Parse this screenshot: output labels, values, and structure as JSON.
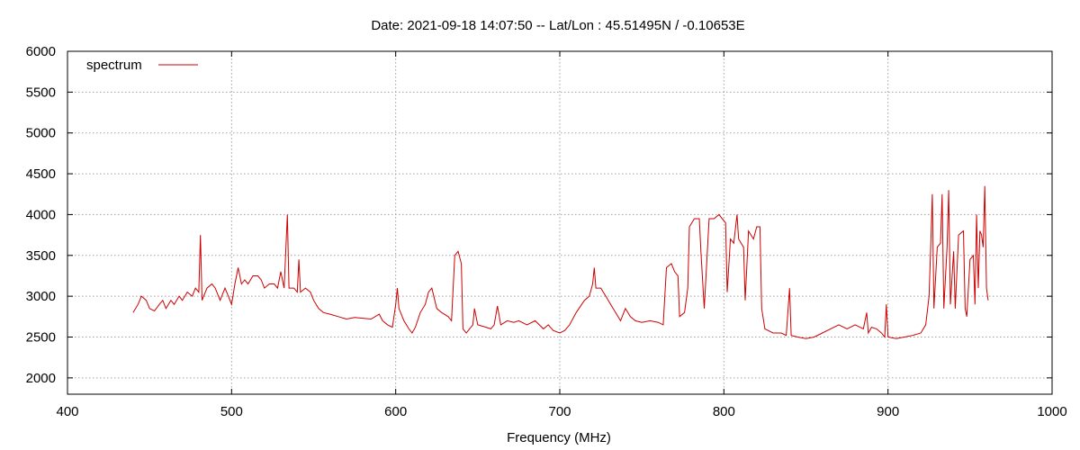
{
  "chart_data": {
    "type": "line",
    "title": "Date: 2021-09-18 14:07:50  --  Lat/Lon : 45.51495N / -0.10653E",
    "xlabel": "Frequency (MHz)",
    "ylabel": "",
    "xlim": [
      400,
      1000
    ],
    "ylim": [
      1800,
      6000
    ],
    "xticks": [
      "400",
      "500",
      "600",
      "700",
      "800",
      "900",
      "1000"
    ],
    "yticks": [
      "2000",
      "2500",
      "3000",
      "3500",
      "4000",
      "4500",
      "5000",
      "5500",
      "6000"
    ],
    "grid": true,
    "legend_position": "top-left",
    "series": [
      {
        "name": "spectrum",
        "color": "#cc0000",
        "points": [
          [
            440,
            2800
          ],
          [
            443,
            2900
          ],
          [
            445,
            3000
          ],
          [
            448,
            2950
          ],
          [
            450,
            2850
          ],
          [
            453,
            2820
          ],
          [
            456,
            2900
          ],
          [
            458,
            2950
          ],
          [
            460,
            2850
          ],
          [
            463,
            2950
          ],
          [
            465,
            2900
          ],
          [
            468,
            3000
          ],
          [
            470,
            2950
          ],
          [
            473,
            3050
          ],
          [
            476,
            3000
          ],
          [
            478,
            3100
          ],
          [
            480,
            3050
          ],
          [
            481,
            3750
          ],
          [
            482,
            2950
          ],
          [
            485,
            3100
          ],
          [
            488,
            3150
          ],
          [
            490,
            3100
          ],
          [
            493,
            2950
          ],
          [
            496,
            3100
          ],
          [
            498,
            3000
          ],
          [
            500,
            2900
          ],
          [
            502,
            3150
          ],
          [
            504,
            3350
          ],
          [
            506,
            3150
          ],
          [
            508,
            3200
          ],
          [
            510,
            3150
          ],
          [
            513,
            3250
          ],
          [
            516,
            3250
          ],
          [
            518,
            3200
          ],
          [
            520,
            3100
          ],
          [
            523,
            3150
          ],
          [
            526,
            3150
          ],
          [
            528,
            3100
          ],
          [
            530,
            3300
          ],
          [
            532,
            3100
          ],
          [
            534,
            4000
          ],
          [
            535,
            3100
          ],
          [
            538,
            3100
          ],
          [
            540,
            3050
          ],
          [
            541,
            3450
          ],
          [
            542,
            3050
          ],
          [
            545,
            3100
          ],
          [
            548,
            3050
          ],
          [
            550,
            2950
          ],
          [
            553,
            2850
          ],
          [
            556,
            2800
          ],
          [
            560,
            2780
          ],
          [
            565,
            2750
          ],
          [
            570,
            2720
          ],
          [
            575,
            2740
          ],
          [
            580,
            2730
          ],
          [
            585,
            2720
          ],
          [
            590,
            2780
          ],
          [
            592,
            2700
          ],
          [
            595,
            2650
          ],
          [
            598,
            2620
          ],
          [
            600,
            2900
          ],
          [
            601,
            3100
          ],
          [
            602,
            2850
          ],
          [
            605,
            2700
          ],
          [
            608,
            2600
          ],
          [
            610,
            2550
          ],
          [
            612,
            2620
          ],
          [
            615,
            2800
          ],
          [
            618,
            2900
          ],
          [
            620,
            3050
          ],
          [
            622,
            3100
          ],
          [
            625,
            2850
          ],
          [
            628,
            2800
          ],
          [
            632,
            2750
          ],
          [
            634,
            2700
          ],
          [
            636,
            3500
          ],
          [
            638,
            3550
          ],
          [
            640,
            3400
          ],
          [
            641,
            2600
          ],
          [
            643,
            2550
          ],
          [
            645,
            2600
          ],
          [
            647,
            2650
          ],
          [
            648,
            2850
          ],
          [
            650,
            2650
          ],
          [
            655,
            2620
          ],
          [
            658,
            2600
          ],
          [
            660,
            2650
          ],
          [
            662,
            2880
          ],
          [
            664,
            2650
          ],
          [
            668,
            2700
          ],
          [
            672,
            2680
          ],
          [
            675,
            2700
          ],
          [
            680,
            2650
          ],
          [
            685,
            2700
          ],
          [
            690,
            2600
          ],
          [
            693,
            2650
          ],
          [
            696,
            2580
          ],
          [
            700,
            2550
          ],
          [
            703,
            2580
          ],
          [
            706,
            2650
          ],
          [
            710,
            2800
          ],
          [
            715,
            2950
          ],
          [
            718,
            3000
          ],
          [
            720,
            3150
          ],
          [
            721,
            3350
          ],
          [
            722,
            3100
          ],
          [
            725,
            3100
          ],
          [
            728,
            3000
          ],
          [
            731,
            2900
          ],
          [
            734,
            2800
          ],
          [
            737,
            2700
          ],
          [
            740,
            2850
          ],
          [
            743,
            2750
          ],
          [
            746,
            2700
          ],
          [
            750,
            2680
          ],
          [
            755,
            2700
          ],
          [
            760,
            2680
          ],
          [
            763,
            2650
          ],
          [
            765,
            3350
          ],
          [
            768,
            3400
          ],
          [
            770,
            3300
          ],
          [
            772,
            3250
          ],
          [
            773,
            2750
          ],
          [
            776,
            2800
          ],
          [
            778,
            3100
          ],
          [
            779,
            3850
          ],
          [
            782,
            3950
          ],
          [
            785,
            3950
          ],
          [
            786,
            3550
          ],
          [
            788,
            2850
          ],
          [
            791,
            3950
          ],
          [
            794,
            3950
          ],
          [
            797,
            4000
          ],
          [
            799,
            3950
          ],
          [
            801,
            3900
          ],
          [
            802,
            3050
          ],
          [
            804,
            3700
          ],
          [
            806,
            3650
          ],
          [
            808,
            4000
          ],
          [
            809,
            3700
          ],
          [
            812,
            3600
          ],
          [
            813,
            2950
          ],
          [
            815,
            3800
          ],
          [
            818,
            3700
          ],
          [
            820,
            3850
          ],
          [
            822,
            3850
          ],
          [
            823,
            2850
          ],
          [
            825,
            2600
          ],
          [
            830,
            2550
          ],
          [
            835,
            2550
          ],
          [
            838,
            2520
          ],
          [
            840,
            3100
          ],
          [
            841,
            2520
          ],
          [
            845,
            2500
          ],
          [
            850,
            2480
          ],
          [
            855,
            2500
          ],
          [
            860,
            2550
          ],
          [
            865,
            2600
          ],
          [
            870,
            2650
          ],
          [
            875,
            2600
          ],
          [
            880,
            2650
          ],
          [
            885,
            2600
          ],
          [
            887,
            2800
          ],
          [
            888,
            2550
          ],
          [
            890,
            2620
          ],
          [
            893,
            2600
          ],
          [
            896,
            2550
          ],
          [
            898,
            2500
          ],
          [
            899,
            2900
          ],
          [
            900,
            2500
          ],
          [
            905,
            2480
          ],
          [
            910,
            2500
          ],
          [
            915,
            2520
          ],
          [
            920,
            2550
          ],
          [
            923,
            2650
          ],
          [
            925,
            3000
          ],
          [
            926,
            3600
          ],
          [
            927,
            4250
          ],
          [
            928,
            2850
          ],
          [
            930,
            3600
          ],
          [
            932,
            3650
          ],
          [
            933,
            4250
          ],
          [
            934,
            2850
          ],
          [
            936,
            3600
          ],
          [
            937,
            4300
          ],
          [
            938,
            2900
          ],
          [
            940,
            3550
          ],
          [
            941,
            2850
          ],
          [
            943,
            3750
          ],
          [
            946,
            3800
          ],
          [
            947,
            2850
          ],
          [
            948,
            2750
          ],
          [
            950,
            3450
          ],
          [
            952,
            3500
          ],
          [
            953,
            2900
          ],
          [
            954,
            4000
          ],
          [
            955,
            3100
          ],
          [
            956,
            3800
          ],
          [
            957,
            3750
          ],
          [
            958,
            3600
          ],
          [
            959,
            4350
          ],
          [
            960,
            3100
          ],
          [
            961,
            2950
          ]
        ]
      }
    ]
  }
}
